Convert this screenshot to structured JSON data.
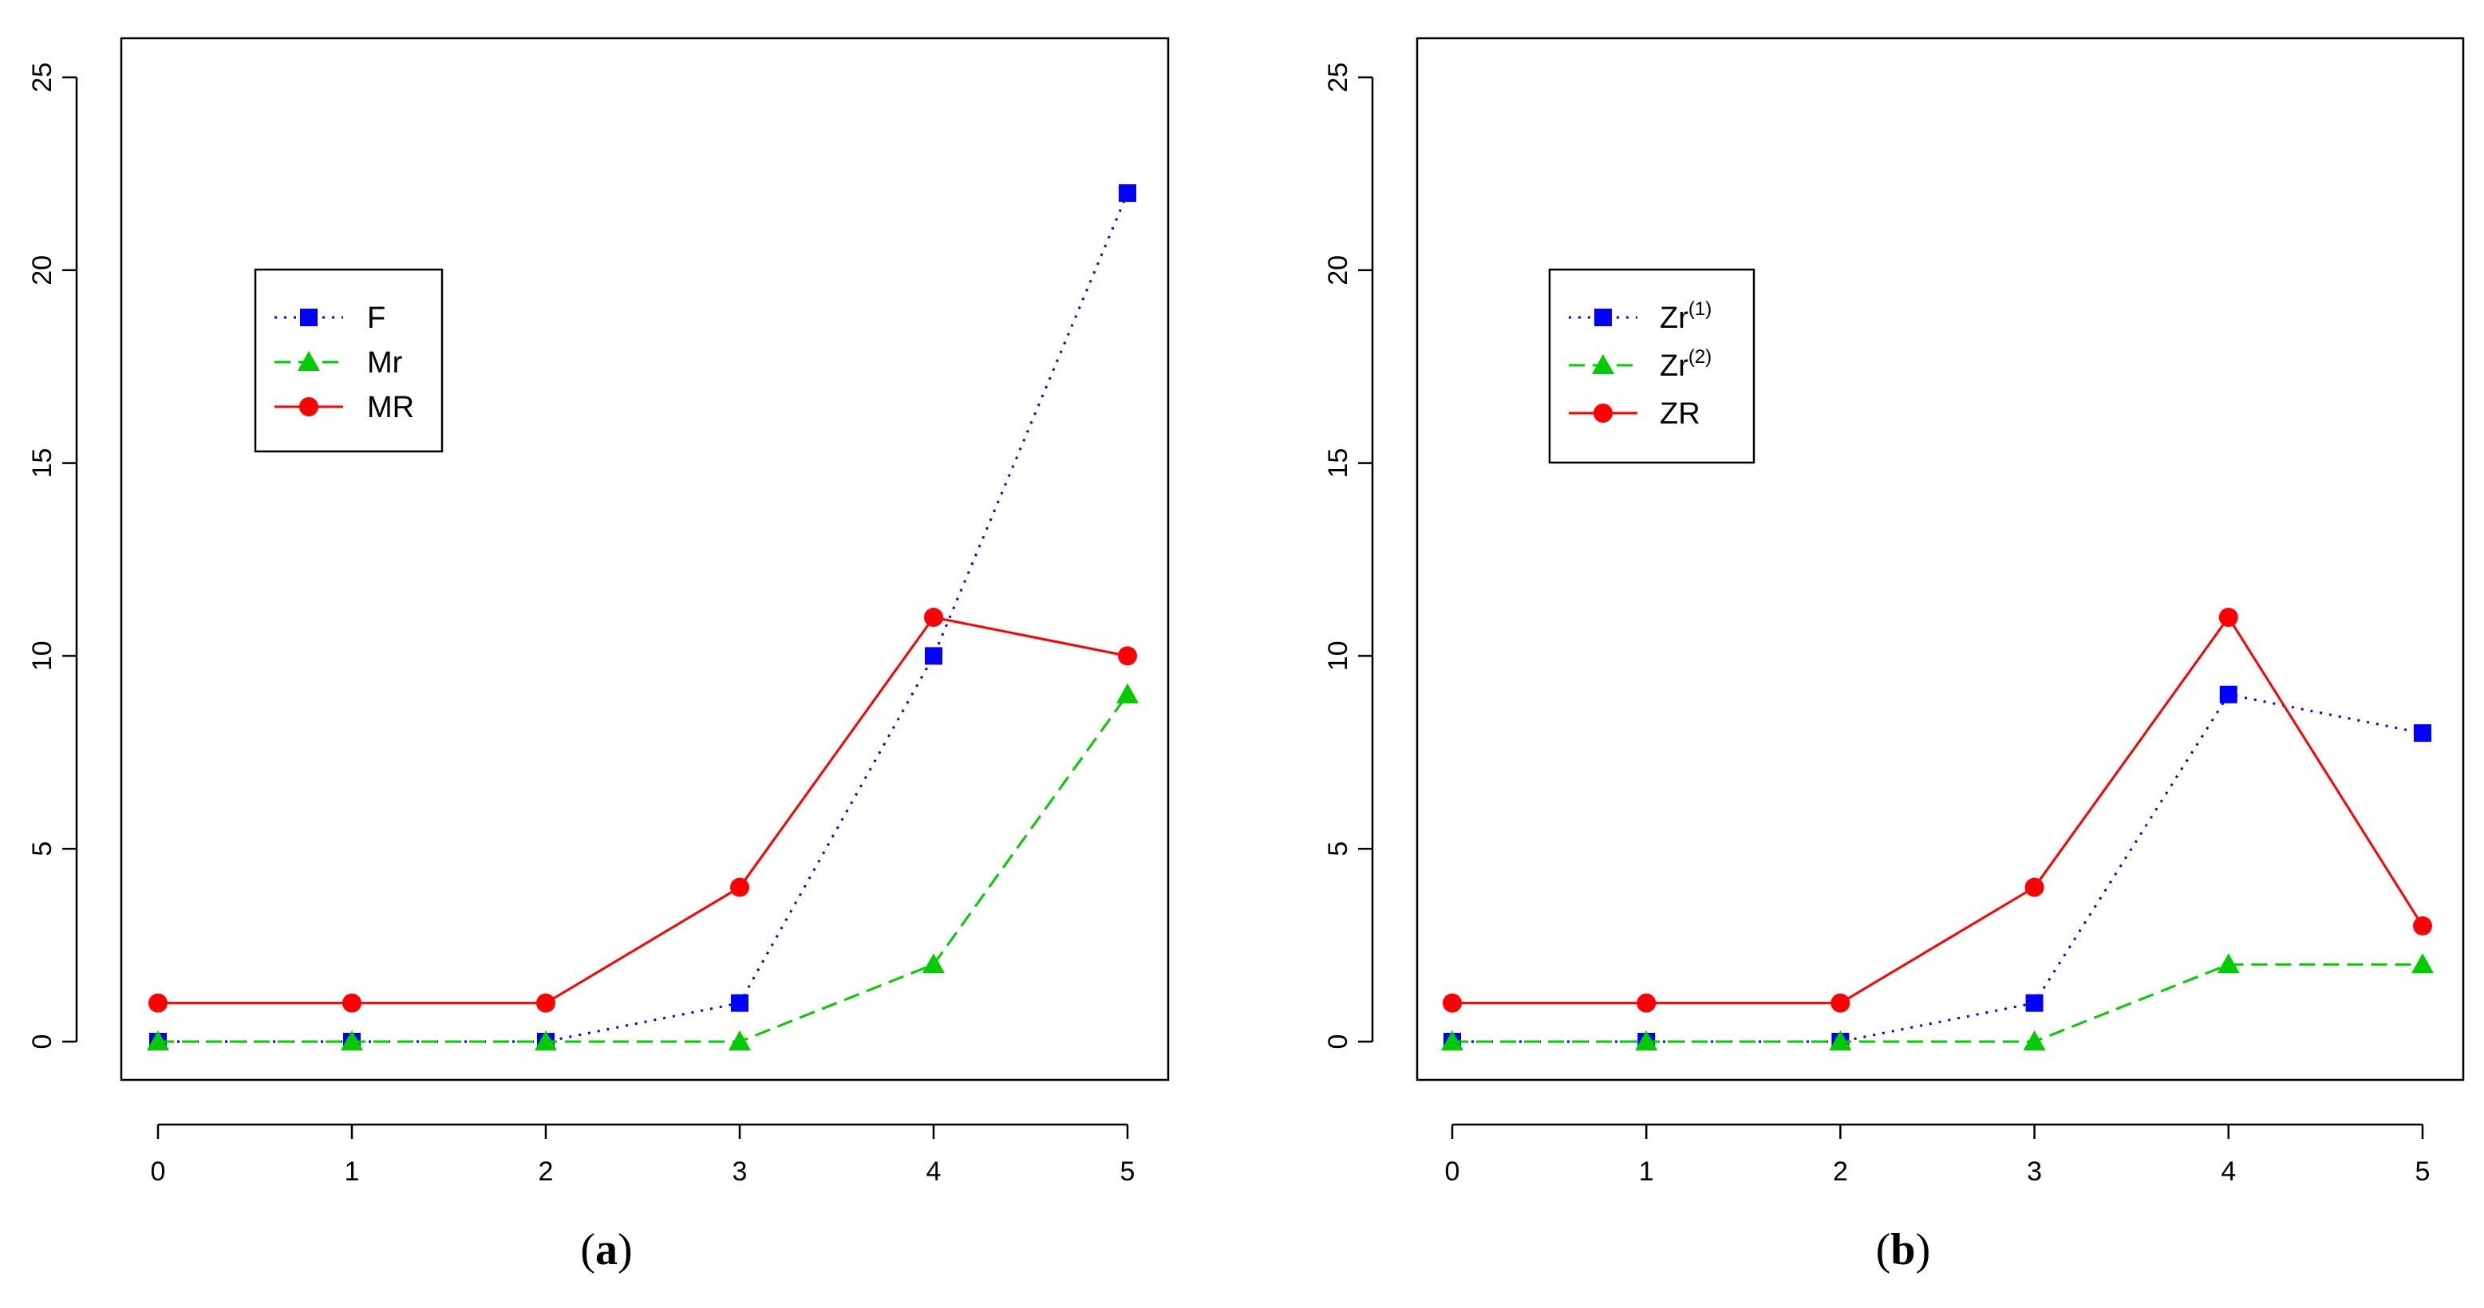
{
  "chart_data": [
    {
      "type": "line",
      "caption": {
        "open": "(",
        "letter": "a",
        "close": ")"
      },
      "x": [
        0,
        1,
        2,
        3,
        4,
        5
      ],
      "x_ticks": [
        "0",
        "1",
        "2",
        "3",
        "4",
        "5"
      ],
      "y_ticks": [
        "0",
        "5",
        "10",
        "15",
        "20",
        "25"
      ],
      "xlim": [
        0,
        5
      ],
      "ylim": [
        0,
        25
      ],
      "xlabel": "",
      "ylabel": "",
      "grid": false,
      "legend_position": "upper-left",
      "series": [
        {
          "name": "F",
          "sup": "",
          "color": "#0000ff",
          "line_style": "dotted",
          "marker": "square",
          "values": [
            0,
            0,
            0,
            1,
            10,
            22
          ]
        },
        {
          "name": "Mr",
          "sup": "",
          "color": "#00cc00",
          "line_style": "dashed",
          "marker": "triangle",
          "values": [
            0,
            0,
            0,
            0,
            2,
            9
          ]
        },
        {
          "name": "MR",
          "sup": "",
          "color": "#ff0000",
          "line_style": "solid",
          "marker": "circle",
          "values": [
            1,
            1,
            1,
            4,
            11,
            10
          ]
        }
      ]
    },
    {
      "type": "line",
      "caption": {
        "open": "(",
        "letter": "b",
        "close": ")"
      },
      "x": [
        0,
        1,
        2,
        3,
        4,
        5
      ],
      "x_ticks": [
        "0",
        "1",
        "2",
        "3",
        "4",
        "5"
      ],
      "y_ticks": [
        "0",
        "5",
        "10",
        "15",
        "20",
        "25"
      ],
      "xlim": [
        0,
        5
      ],
      "ylim": [
        0,
        25
      ],
      "xlabel": "",
      "ylabel": "",
      "grid": false,
      "legend_position": "upper-left",
      "series": [
        {
          "name": "Zr",
          "sup": "(1)",
          "color": "#0000ff",
          "line_style": "dotted",
          "marker": "square",
          "values": [
            0,
            0,
            0,
            1,
            9,
            8
          ]
        },
        {
          "name": "Zr",
          "sup": "(2)",
          "color": "#00cc00",
          "line_style": "dashed",
          "marker": "triangle",
          "values": [
            0,
            0,
            0,
            0,
            2,
            2
          ]
        },
        {
          "name": "ZR",
          "sup": "",
          "color": "#ff0000",
          "line_style": "solid",
          "marker": "circle",
          "values": [
            1,
            1,
            1,
            4,
            11,
            3
          ]
        }
      ]
    }
  ]
}
